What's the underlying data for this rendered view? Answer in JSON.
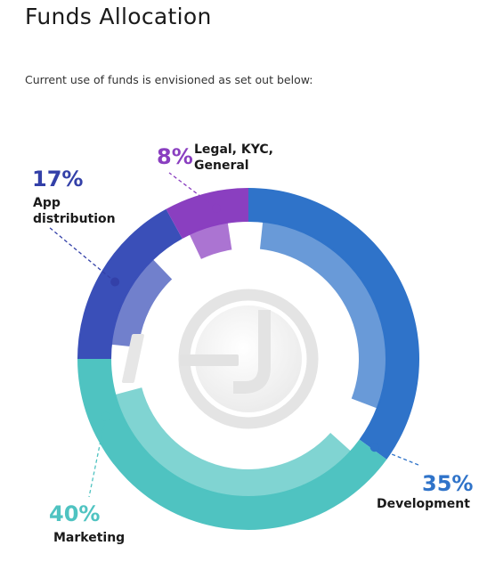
{
  "header": {
    "title": "Funds Allocation",
    "subtitle": "Current use of funds is envisioned as set out below:"
  },
  "chart_data": {
    "type": "pie",
    "style": "donut",
    "title": "Funds Allocation",
    "categories": [
      "Development",
      "Marketing",
      "App distribution",
      "Legal, KYC, General"
    ],
    "values": [
      35,
      40,
      17,
      8
    ],
    "value_labels": [
      "35%",
      "40%",
      "17%",
      "8%"
    ],
    "label_lines": [
      [
        "Development"
      ],
      [
        "Marketing"
      ],
      [
        "App",
        "distribution"
      ],
      [
        "Legal, KYC,",
        "General"
      ]
    ],
    "unit": "%",
    "colors": {
      "Development": "#2f73c9",
      "Marketing": "#4fc3c1",
      "App distribution": "#3a4fb8",
      "Legal, KYC, General": "#8a3fc0"
    },
    "label_colors": {
      "Development": "#2f73c9",
      "Marketing": "#4fc3c1",
      "App distribution": "#3340a8",
      "Legal, KYC, General": "#8a3fc0"
    },
    "center_logo": "hu-logo",
    "legend": "none"
  }
}
